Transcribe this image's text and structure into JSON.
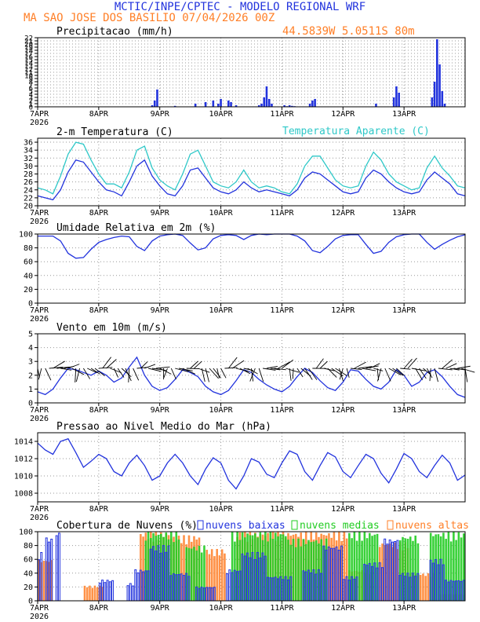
{
  "header": {
    "line1": "MCTIC/INPE/CPTEC - MODELO REGIONAL WRF",
    "line2": "MA SAO JOSE DOS BASILIO   07/04/2026 00Z",
    "coords": "44.5839W 5.0511S 80m"
  },
  "colors": {
    "blue": "#2233dd",
    "orange": "#ff7f27",
    "cyan": "#2ec8c8",
    "green": "#22cc22",
    "black": "#000000"
  },
  "x_labels": [
    "7APR",
    "8APR",
    "9APR",
    "10APR",
    "11APR",
    "12APR",
    "13APR"
  ],
  "year": "2026",
  "chart_data": [
    {
      "type": "bar",
      "title": "Precipitacao (mm/h)",
      "ylim": [
        0,
        22
      ],
      "yticks": [
        0,
        1,
        2,
        3,
        4,
        5,
        6,
        7,
        8,
        9,
        10,
        11,
        12,
        13,
        14,
        15,
        16,
        17,
        18,
        19,
        20,
        21,
        22
      ],
      "x_hours": [
        45,
        46,
        47,
        54,
        62,
        66,
        69,
        71,
        72,
        75,
        76,
        78,
        87,
        88,
        89,
        90,
        91,
        92,
        97,
        98,
        99,
        100,
        101,
        107,
        108,
        109,
        133,
        140,
        141,
        142,
        155,
        156,
        157,
        158,
        159,
        160
      ],
      "values": [
        0.5,
        2.0,
        5.5,
        0.3,
        1.0,
        1.5,
        2.0,
        1.0,
        2.5,
        2.0,
        1.5,
        0.5,
        0.5,
        1.0,
        3.0,
        6.5,
        2.5,
        1.0,
        0.5,
        0.2,
        0.5,
        0.3,
        0.2,
        1.0,
        2.0,
        2.5,
        1.0,
        3.0,
        6.5,
        4.5,
        3.0,
        8.0,
        21.5,
        13.5,
        5.0,
        1.0
      ]
    },
    {
      "type": "line",
      "title": "2-m Temperatura (C)",
      "legend": "Temperatura Aparente (C)",
      "ylim": [
        20,
        37
      ],
      "yticks": [
        20,
        22,
        24,
        26,
        28,
        30,
        32,
        34,
        36
      ],
      "series": [
        {
          "name": "2-m Temperatura",
          "color": "blue",
          "x_hours": [
            0,
            3,
            6,
            9,
            12,
            15,
            18,
            21,
            24,
            27,
            30,
            33,
            36,
            39,
            42,
            45,
            48,
            51,
            54,
            57,
            60,
            63,
            66,
            69,
            72,
            75,
            78,
            81,
            84,
            87,
            90,
            93,
            96,
            99,
            102,
            105,
            108,
            111,
            114,
            117,
            120,
            123,
            126,
            129,
            132,
            135,
            138,
            141,
            144,
            147,
            150,
            153,
            156,
            159,
            162,
            165,
            168
          ],
          "values": [
            22.5,
            22,
            21.5,
            24,
            28.5,
            31.5,
            31,
            28.5,
            26,
            24,
            23.5,
            22.5,
            26,
            30,
            31.5,
            27.5,
            25,
            23,
            22.5,
            25,
            29,
            29.5,
            27,
            24.5,
            23.5,
            23,
            24,
            26,
            24.5,
            23.5,
            24,
            23.5,
            23,
            22.5,
            24,
            27,
            28.5,
            28,
            26.5,
            25,
            23.5,
            23,
            23.5,
            27,
            29,
            28,
            26,
            24.5,
            23.5,
            23,
            23.5,
            26.5,
            28.5,
            27,
            25.5,
            23,
            22.5
          ]
        },
        {
          "name": "Temperatura Aparente",
          "color": "cyan",
          "x_hours": [
            0,
            3,
            6,
            9,
            12,
            15,
            18,
            21,
            24,
            27,
            30,
            33,
            36,
            39,
            42,
            45,
            48,
            51,
            54,
            57,
            60,
            63,
            66,
            69,
            72,
            75,
            78,
            81,
            84,
            87,
            90,
            93,
            96,
            99,
            102,
            105,
            108,
            111,
            114,
            117,
            120,
            123,
            126,
            129,
            132,
            135,
            138,
            141,
            144,
            147,
            150,
            153,
            156,
            159,
            162,
            165,
            168
          ],
          "values": [
            24.5,
            24,
            23,
            27.5,
            33,
            36,
            35.5,
            31.5,
            28,
            25.5,
            25.5,
            24.5,
            28.5,
            34,
            35,
            29.5,
            26.5,
            25,
            24,
            28,
            33,
            34,
            30,
            26,
            25,
            24.5,
            26,
            29,
            26,
            24.5,
            25,
            24.5,
            23.5,
            23,
            25.5,
            30,
            32.5,
            32.5,
            29.5,
            26.5,
            25,
            24.5,
            25,
            30,
            33.5,
            31.5,
            28,
            26,
            25,
            24,
            24.5,
            29.5,
            32.5,
            29.5,
            27.5,
            25,
            24.5
          ]
        }
      ]
    },
    {
      "type": "line",
      "title": "Umidade Relativa em 2m (%)",
      "ylim": [
        0,
        100
      ],
      "yticks": [
        0,
        20,
        40,
        60,
        80,
        100
      ],
      "series": [
        {
          "name": "Umidade",
          "color": "blue",
          "x_hours": [
            0,
            3,
            6,
            9,
            12,
            15,
            18,
            21,
            24,
            27,
            30,
            33,
            36,
            39,
            42,
            45,
            48,
            51,
            54,
            57,
            60,
            63,
            66,
            69,
            72,
            75,
            78,
            81,
            84,
            87,
            90,
            93,
            96,
            99,
            102,
            105,
            108,
            111,
            114,
            117,
            120,
            123,
            126,
            129,
            132,
            135,
            138,
            141,
            144,
            147,
            150,
            153,
            156,
            159,
            162,
            165,
            168
          ],
          "values": [
            97,
            97,
            97,
            90,
            72,
            65,
            66,
            78,
            88,
            92,
            95,
            97,
            96,
            82,
            76,
            90,
            97,
            99,
            100,
            98,
            87,
            77,
            80,
            93,
            98,
            99,
            98,
            92,
            98,
            100,
            99,
            100,
            100,
            100,
            97,
            90,
            76,
            73,
            82,
            93,
            98,
            99,
            99,
            85,
            72,
            75,
            88,
            96,
            99,
            100,
            100,
            88,
            78,
            85,
            91,
            96,
            99
          ]
        }
      ]
    },
    {
      "type": "line",
      "title": "Vento em 10m (m/s)",
      "ylim": [
        0,
        5
      ],
      "yticks": [
        0,
        1,
        2,
        3,
        4,
        5
      ],
      "series": [
        {
          "name": "Vento",
          "color": "blue",
          "x_hours": [
            0,
            3,
            6,
            9,
            12,
            15,
            18,
            21,
            24,
            27,
            30,
            33,
            36,
            39,
            42,
            45,
            48,
            51,
            54,
            57,
            60,
            63,
            66,
            69,
            72,
            75,
            78,
            81,
            84,
            87,
            90,
            93,
            96,
            99,
            102,
            105,
            108,
            111,
            114,
            117,
            120,
            123,
            126,
            129,
            132,
            135,
            138,
            141,
            144,
            147,
            150,
            153,
            156,
            159,
            162,
            165,
            168
          ],
          "values": [
            0.8,
            0.6,
            1.0,
            1.8,
            2.5,
            2.4,
            2.2,
            2.0,
            2.3,
            2.0,
            1.5,
            1.8,
            2.6,
            3.3,
            2.0,
            1.2,
            0.9,
            1.1,
            1.7,
            2.4,
            2.2,
            1.9,
            1.2,
            0.8,
            0.6,
            0.9,
            1.6,
            2.4,
            2.2,
            1.7,
            1.3,
            1.0,
            0.8,
            1.2,
            1.9,
            2.5,
            2.2,
            1.6,
            1.1,
            0.9,
            1.5,
            2.4,
            2.3,
            1.7,
            1.2,
            1.0,
            1.5,
            2.4,
            2.0,
            1.2,
            1.5,
            2.2,
            2.4,
            1.9,
            1.2,
            0.6,
            0.4
          ]
        }
      ],
      "barbs": [
        {
          "x_start_hour": 0,
          "x_end_hour": 168,
          "step_hours": 1.5,
          "baseline": 2.5
        }
      ]
    },
    {
      "type": "line",
      "title": "Pressao ao Nivel Medio do Mar (hPa)",
      "ylim": [
        1007,
        1015
      ],
      "yticks": [
        1008,
        1010,
        1012,
        1014
      ],
      "series": [
        {
          "name": "Pressao",
          "color": "blue",
          "x_hours": [
            0,
            3,
            6,
            9,
            12,
            15,
            18,
            21,
            24,
            27,
            30,
            33,
            36,
            39,
            42,
            45,
            48,
            51,
            54,
            57,
            60,
            63,
            66,
            69,
            72,
            75,
            78,
            81,
            84,
            87,
            90,
            93,
            96,
            99,
            102,
            105,
            108,
            111,
            114,
            117,
            120,
            123,
            126,
            129,
            132,
            135,
            138,
            141,
            144,
            147,
            150,
            153,
            156,
            159,
            162,
            165,
            168
          ],
          "values": [
            1013.8,
            1013,
            1012.5,
            1014,
            1014.3,
            1012.7,
            1011,
            1011.7,
            1012.5,
            1012,
            1010.5,
            1010,
            1011.5,
            1012.4,
            1011.2,
            1009.5,
            1010,
            1011.5,
            1012.5,
            1011.5,
            1010,
            1009,
            1010.8,
            1012.1,
            1011.5,
            1009.5,
            1008.5,
            1010,
            1012,
            1011.6,
            1010.2,
            1009.8,
            1011.5,
            1012.9,
            1012.5,
            1010.5,
            1009.5,
            1011.2,
            1012.7,
            1012.2,
            1010.5,
            1009.8,
            1011.2,
            1012.5,
            1012,
            1010.3,
            1009.2,
            1010.8,
            1012.6,
            1012,
            1010.5,
            1009.8,
            1011.2,
            1012.4,
            1011.5,
            1009.5,
            1010.1
          ]
        }
      ]
    },
    {
      "type": "bar",
      "title": "Cobertura de Nuvens (%)",
      "ylim": [
        0,
        100
      ],
      "yticks": [
        0,
        20,
        40,
        60,
        80,
        100
      ],
      "legend": [
        "nuvens baixas",
        "nuvens medias",
        "nuvens altas"
      ],
      "series": [
        {
          "name": "nuvens baixas",
          "color": "blue",
          "segments": [
            [
              0,
              2,
              70
            ],
            [
              3,
              6,
              92
            ],
            [
              7,
              9,
              100
            ],
            [
              24,
              30,
              30
            ],
            [
              35,
              38,
              25
            ],
            [
              38,
              44,
              45
            ],
            [
              44,
              52,
              80
            ],
            [
              52,
              60,
              40
            ],
            [
              62,
              70,
              20
            ],
            [
              74,
              80,
              45
            ],
            [
              80,
              90,
              70
            ],
            [
              90,
              100,
              35
            ],
            [
              104,
              112,
              45
            ],
            [
              112,
              120,
              80
            ],
            [
              120,
              126,
              35
            ],
            [
              128,
              136,
              55
            ],
            [
              136,
              142,
              90
            ],
            [
              142,
              150,
              40
            ],
            [
              154,
              160,
              60
            ],
            [
              160,
              168,
              30
            ]
          ]
        },
        {
          "name": "nuvens medias",
          "color": "green",
          "segments": [
            [
              42,
              56,
              100
            ],
            [
              58,
              66,
              80
            ],
            [
              76,
              98,
              100
            ],
            [
              98,
              114,
              90
            ],
            [
              122,
              134,
              100
            ],
            [
              142,
              150,
              95
            ],
            [
              154,
              168,
              100
            ]
          ]
        },
        {
          "name": "nuvens altas",
          "color": "orange",
          "segments": [
            [
              0,
              6,
              60
            ],
            [
              18,
              26,
              22
            ],
            [
              40,
              52,
              100
            ],
            [
              52,
              64,
              95
            ],
            [
              66,
              74,
              75
            ],
            [
              78,
              90,
              100
            ],
            [
              90,
              100,
              100
            ],
            [
              100,
              112,
              100
            ],
            [
              112,
              122,
              100
            ],
            [
              122,
              132,
              45
            ],
            [
              134,
              146,
              85
            ],
            [
              146,
              156,
              40
            ],
            [
              158,
              168,
              10
            ]
          ]
        }
      ]
    }
  ]
}
